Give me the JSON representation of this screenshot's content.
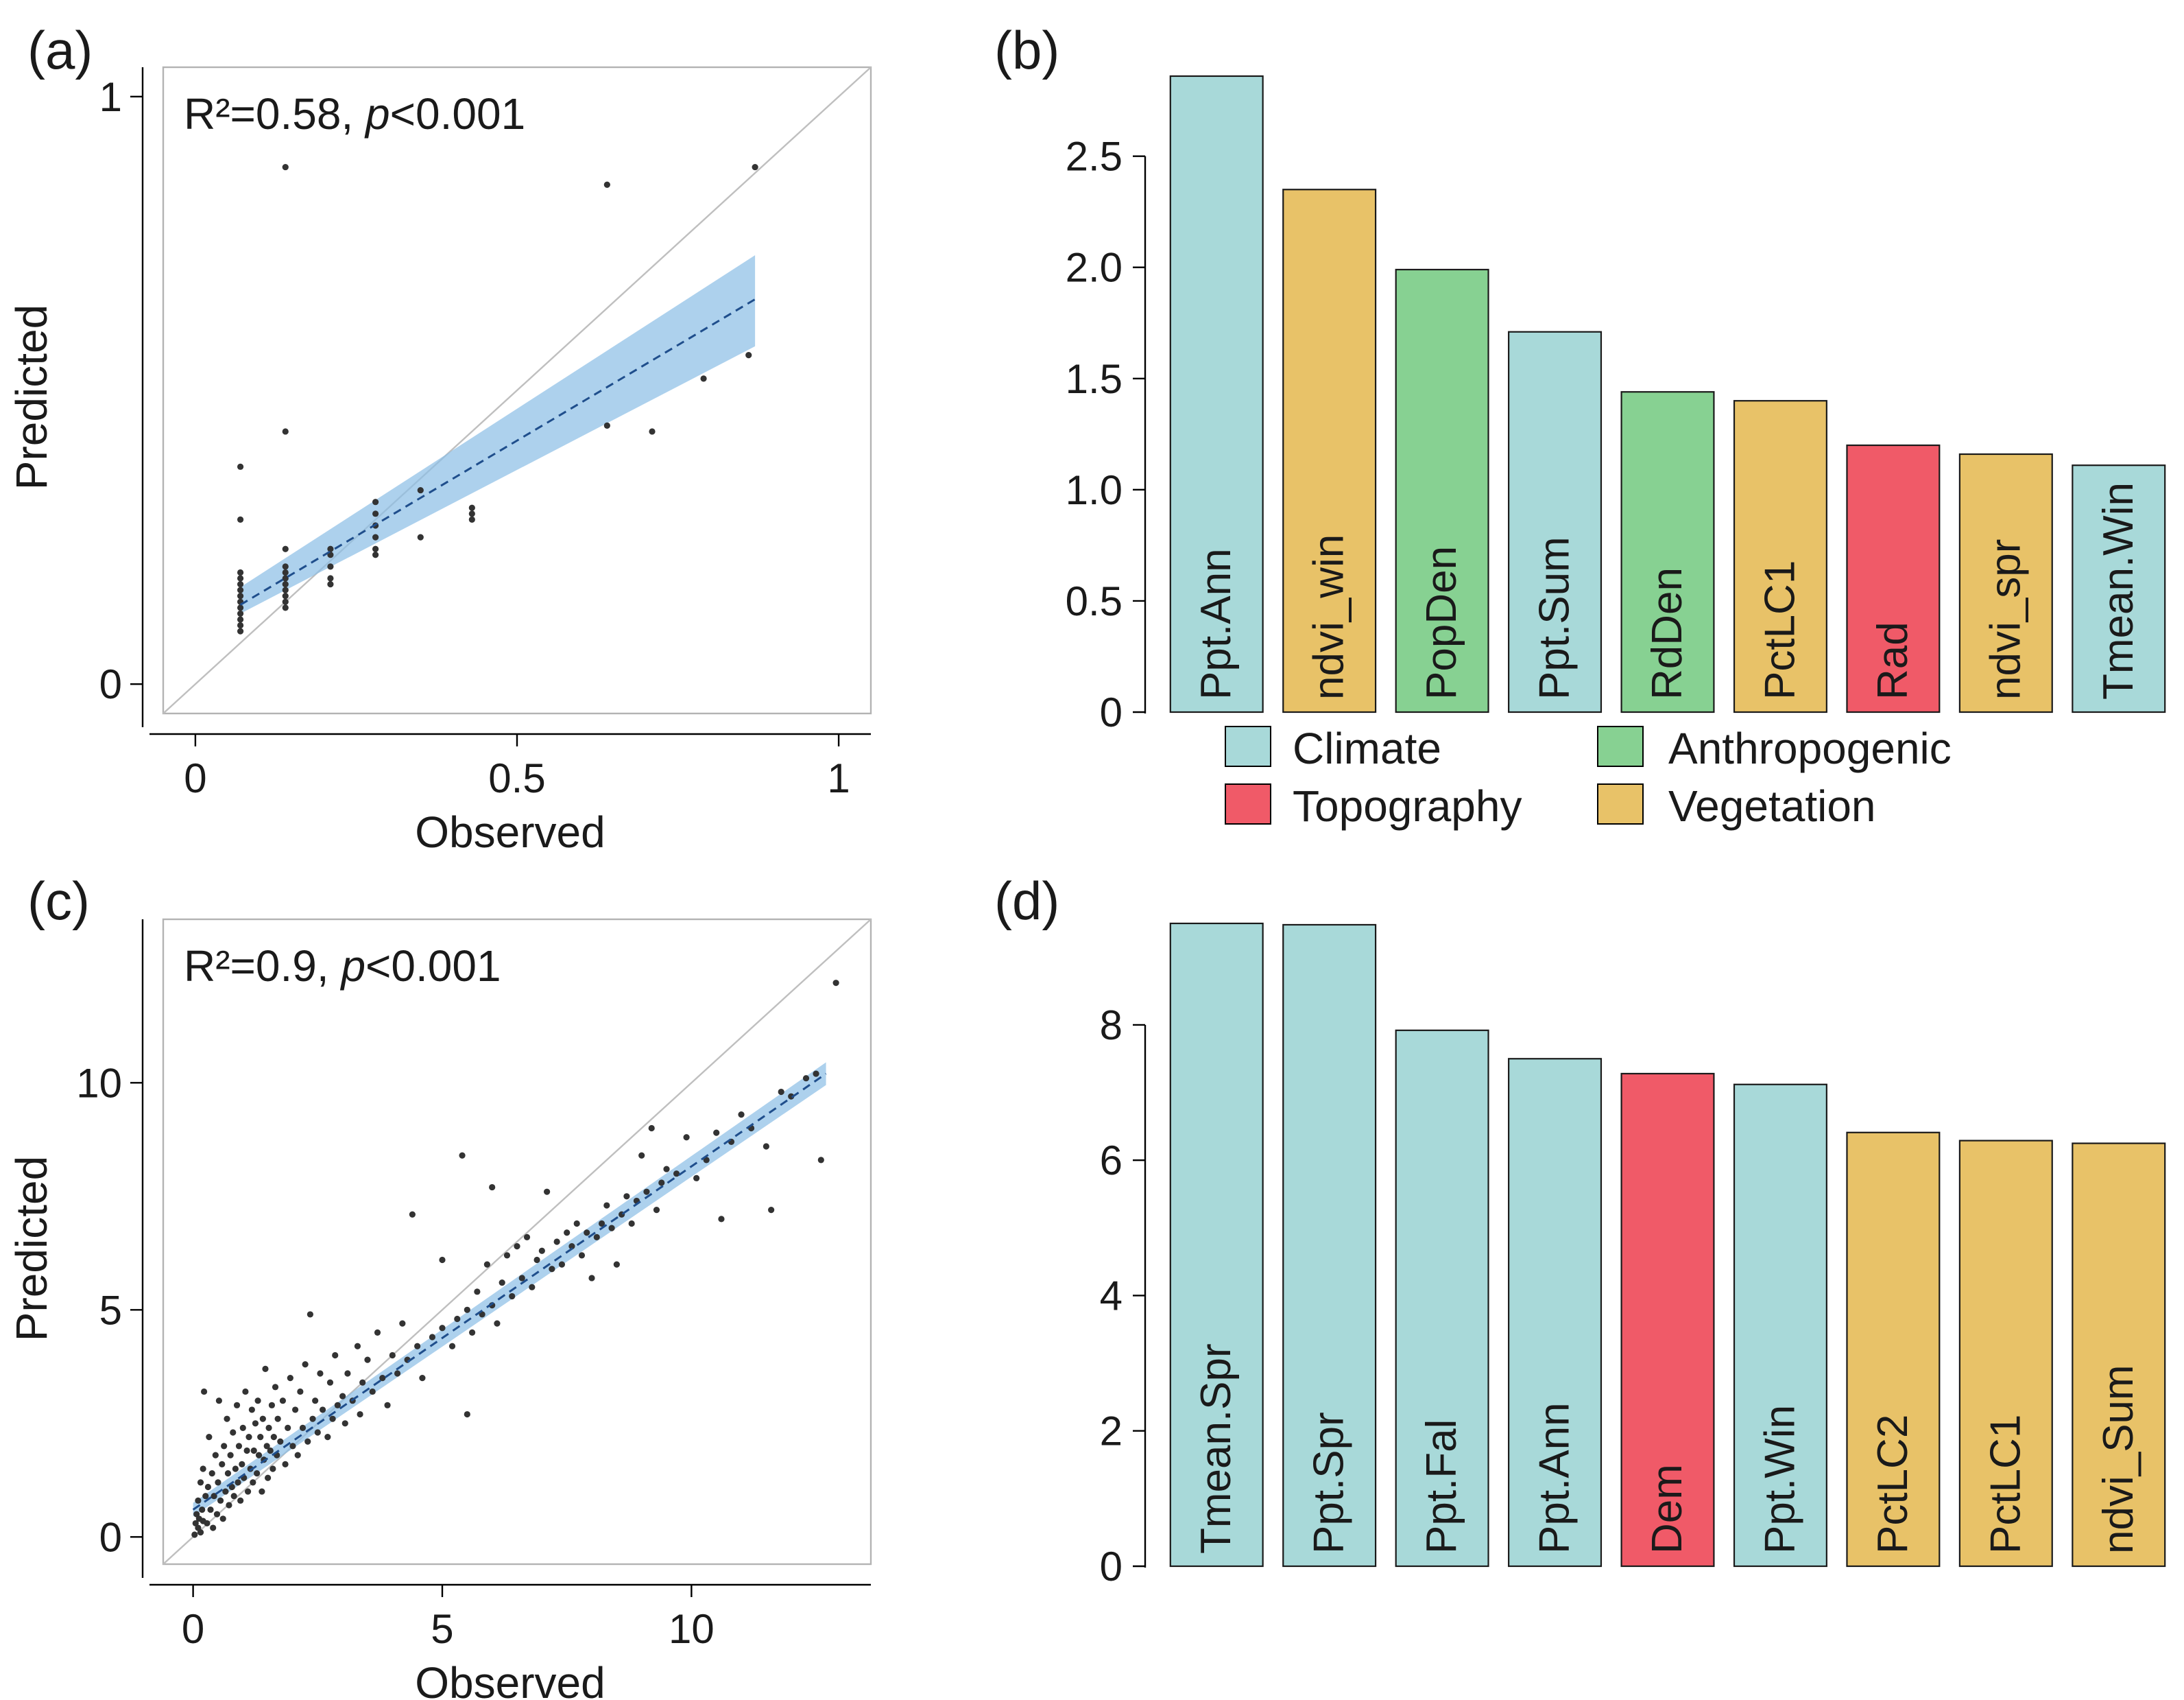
{
  "panel_labels": [
    "(a)",
    "(b)",
    "(c)",
    "(d)"
  ],
  "colors": {
    "Climate": "#a8d9d9",
    "Anthropogenic": "#87d192",
    "Topography": "#f05a68",
    "Vegetation": "#e8c268",
    "band": "#8ebfe6",
    "fit_line": "#1f4e8c",
    "points": "#333333",
    "identity_line": "#bfbfbf"
  },
  "legend": [
    {
      "label": "Climate",
      "group": "Climate"
    },
    {
      "label": "Anthropogenic",
      "group": "Anthropogenic"
    },
    {
      "label": "Topography",
      "group": "Topography"
    },
    {
      "label": "Vegetation",
      "group": "Vegetation"
    }
  ],
  "chart_data": [
    {
      "panel": "(a)",
      "type": "scatter",
      "xlabel": "Observed",
      "ylabel": "Predicted",
      "xlim": [
        -0.05,
        1.05
      ],
      "ylim": [
        -0.05,
        1.05
      ],
      "xticks": [
        0,
        0.5,
        1
      ],
      "xtick_labels": [
        "0",
        "0.5",
        "1"
      ],
      "yticks": [
        0,
        1
      ],
      "ytick_labels": [
        "0",
        "1"
      ],
      "annotation": {
        "r2": "R²=0.58,",
        "p_italic": "p",
        "p_rest": "<0.001"
      },
      "identity_line": true,
      "fit": {
        "x0": 0.07,
        "y0": 0.135,
        "x1": 0.87,
        "y1": 0.655,
        "ci_lo_start": 0.12,
        "ci_hi_start": 0.165,
        "ci_lo_end": 0.575,
        "ci_hi_end": 0.73
      },
      "points": [
        [
          0.07,
          0.09
        ],
        [
          0.07,
          0.1
        ],
        [
          0.07,
          0.11
        ],
        [
          0.07,
          0.12
        ],
        [
          0.07,
          0.13
        ],
        [
          0.07,
          0.14
        ],
        [
          0.07,
          0.15
        ],
        [
          0.07,
          0.16
        ],
        [
          0.07,
          0.17
        ],
        [
          0.07,
          0.18
        ],
        [
          0.07,
          0.19
        ],
        [
          0.07,
          0.28
        ],
        [
          0.07,
          0.37
        ],
        [
          0.14,
          0.13
        ],
        [
          0.14,
          0.14
        ],
        [
          0.14,
          0.15
        ],
        [
          0.14,
          0.16
        ],
        [
          0.14,
          0.17
        ],
        [
          0.14,
          0.18
        ],
        [
          0.14,
          0.19
        ],
        [
          0.14,
          0.2
        ],
        [
          0.14,
          0.23
        ],
        [
          0.14,
          0.43
        ],
        [
          0.14,
          0.88
        ],
        [
          0.21,
          0.17
        ],
        [
          0.21,
          0.18
        ],
        [
          0.21,
          0.2
        ],
        [
          0.21,
          0.22
        ],
        [
          0.21,
          0.23
        ],
        [
          0.28,
          0.22
        ],
        [
          0.28,
          0.23
        ],
        [
          0.28,
          0.25
        ],
        [
          0.28,
          0.27
        ],
        [
          0.28,
          0.29
        ],
        [
          0.28,
          0.31
        ],
        [
          0.35,
          0.25
        ],
        [
          0.35,
          0.33
        ],
        [
          0.43,
          0.28
        ],
        [
          0.43,
          0.29
        ],
        [
          0.43,
          0.3
        ],
        [
          0.64,
          0.44
        ],
        [
          0.64,
          0.85
        ],
        [
          0.71,
          0.43
        ],
        [
          0.79,
          0.52
        ],
        [
          0.86,
          0.56
        ],
        [
          0.87,
          0.88
        ]
      ]
    },
    {
      "panel": "(b)",
      "type": "bar",
      "categories": [
        "Ppt.Ann",
        "ndvi_win",
        "PopDen",
        "Ppt.Sum",
        "RdDen",
        "PctLC1",
        "Rad",
        "ndvi_spr",
        "Tmean.Win"
      ],
      "values": [
        2.86,
        2.35,
        1.99,
        1.71,
        1.44,
        1.4,
        1.2,
        1.16,
        1.11
      ],
      "groups": [
        "Climate",
        "Vegetation",
        "Anthropogenic",
        "Climate",
        "Anthropogenic",
        "Vegetation",
        "Topography",
        "Vegetation",
        "Climate"
      ],
      "ylim": [
        0,
        2.9
      ],
      "yticks": [
        0,
        0.5,
        1.0,
        1.5,
        2.0,
        2.5
      ],
      "ytick_labels": [
        "0",
        "0.5",
        "1.0",
        "1.5",
        "2.0",
        "2.5"
      ]
    },
    {
      "panel": "(c)",
      "type": "scatter",
      "xlabel": "Observed",
      "ylabel": "Predicted",
      "xlim": [
        -0.6,
        13.6
      ],
      "ylim": [
        -0.6,
        13.6
      ],
      "xticks": [
        0,
        5,
        10
      ],
      "xtick_labels": [
        "0",
        "5",
        "10"
      ],
      "yticks": [
        0,
        5,
        10
      ],
      "ytick_labels": [
        "0",
        "5",
        "10"
      ],
      "annotation": {
        "r2": "R²=0.9,",
        "p_italic": "p",
        "p_rest": "<0.001"
      },
      "identity_line": true,
      "fit": {
        "x0": 0.0,
        "y0": 0.6,
        "x1": 12.7,
        "y1": 10.2,
        "ci_lo_start": 0.45,
        "ci_hi_start": 0.75,
        "ci_lo_end": 9.95,
        "ci_hi_end": 10.45
      },
      "points": [
        [
          0.03,
          0.05
        ],
        [
          0.05,
          0.3
        ],
        [
          0.07,
          0.5
        ],
        [
          0.1,
          0.2
        ],
        [
          0.1,
          0.8
        ],
        [
          0.12,
          0.4
        ],
        [
          0.15,
          0.1
        ],
        [
          0.15,
          1.2
        ],
        [
          0.18,
          0.6
        ],
        [
          0.2,
          0.35
        ],
        [
          0.2,
          1.5
        ],
        [
          0.22,
          3.2
        ],
        [
          0.25,
          0.9
        ],
        [
          0.28,
          0.3
        ],
        [
          0.3,
          1.1
        ],
        [
          0.32,
          2.2
        ],
        [
          0.35,
          0.6
        ],
        [
          0.38,
          1.4
        ],
        [
          0.4,
          0.2
        ],
        [
          0.42,
          0.9
        ],
        [
          0.45,
          1.8
        ],
        [
          0.48,
          0.5
        ],
        [
          0.5,
          1.2
        ],
        [
          0.52,
          3.0
        ],
        [
          0.55,
          0.8
        ],
        [
          0.58,
          1.6
        ],
        [
          0.6,
          0.4
        ],
        [
          0.62,
          2.0
        ],
        [
          0.65,
          1.0
        ],
        [
          0.68,
          2.6
        ],
        [
          0.7,
          1.4
        ],
        [
          0.72,
          0.7
        ],
        [
          0.75,
          1.8
        ],
        [
          0.78,
          1.1
        ],
        [
          0.8,
          2.3
        ],
        [
          0.82,
          0.9
        ],
        [
          0.85,
          1.5
        ],
        [
          0.88,
          2.9
        ],
        [
          0.9,
          1.2
        ],
        [
          0.92,
          2.0
        ],
        [
          0.95,
          0.8
        ],
        [
          0.98,
          1.6
        ],
        [
          1.0,
          2.4
        ],
        [
          1.02,
          1.3
        ],
        [
          1.05,
          3.2
        ],
        [
          1.08,
          1.9
        ],
        [
          1.1,
          1.0
        ],
        [
          1.12,
          2.2
        ],
        [
          1.15,
          1.5
        ],
        [
          1.18,
          2.8
        ],
        [
          1.2,
          1.2
        ],
        [
          1.22,
          1.9
        ],
        [
          1.25,
          2.5
        ],
        [
          1.28,
          1.4
        ],
        [
          1.3,
          3.0
        ],
        [
          1.32,
          1.8
        ],
        [
          1.35,
          2.2
        ],
        [
          1.38,
          1.0
        ],
        [
          1.4,
          2.6
        ],
        [
          1.42,
          1.7
        ],
        [
          1.45,
          3.7
        ],
        [
          1.48,
          2.0
        ],
        [
          1.5,
          1.3
        ],
        [
          1.52,
          2.4
        ],
        [
          1.55,
          1.9
        ],
        [
          1.58,
          2.9
        ],
        [
          1.6,
          1.5
        ],
        [
          1.62,
          2.2
        ],
        [
          1.65,
          3.3
        ],
        [
          1.68,
          1.8
        ],
        [
          1.7,
          2.6
        ],
        [
          1.75,
          2.1
        ],
        [
          1.8,
          3.0
        ],
        [
          1.85,
          1.6
        ],
        [
          1.9,
          2.4
        ],
        [
          1.95,
          3.5
        ],
        [
          2.0,
          2.0
        ],
        [
          2.05,
          2.8
        ],
        [
          2.1,
          1.8
        ],
        [
          2.15,
          3.2
        ],
        [
          2.2,
          2.4
        ],
        [
          2.25,
          3.8
        ],
        [
          2.3,
          2.1
        ],
        [
          2.35,
          4.9
        ],
        [
          2.4,
          2.6
        ],
        [
          2.45,
          3.0
        ],
        [
          2.5,
          2.3
        ],
        [
          2.55,
          3.6
        ],
        [
          2.6,
          2.8
        ],
        [
          2.7,
          2.2
        ],
        [
          2.75,
          3.4
        ],
        [
          2.8,
          2.6
        ],
        [
          2.85,
          4.0
        ],
        [
          2.9,
          2.9
        ],
        [
          3.0,
          3.1
        ],
        [
          3.05,
          2.5
        ],
        [
          3.1,
          3.6
        ],
        [
          3.2,
          3.0
        ],
        [
          3.3,
          4.2
        ],
        [
          3.35,
          2.7
        ],
        [
          3.4,
          3.4
        ],
        [
          3.5,
          3.9
        ],
        [
          3.6,
          3.2
        ],
        [
          3.7,
          4.5
        ],
        [
          3.8,
          3.5
        ],
        [
          3.9,
          2.9
        ],
        [
          4.0,
          4.0
        ],
        [
          4.1,
          3.6
        ],
        [
          4.2,
          4.7
        ],
        [
          4.3,
          3.9
        ],
        [
          4.4,
          7.1
        ],
        [
          4.5,
          4.2
        ],
        [
          4.6,
          3.5
        ],
        [
          4.8,
          4.4
        ],
        [
          5.0,
          4.6
        ],
        [
          5.0,
          6.1
        ],
        [
          5.2,
          4.2
        ],
        [
          5.3,
          4.8
        ],
        [
          5.4,
          8.4
        ],
        [
          5.5,
          5.0
        ],
        [
          5.5,
          2.7
        ],
        [
          5.6,
          4.5
        ],
        [
          5.7,
          5.4
        ],
        [
          5.8,
          4.9
        ],
        [
          5.9,
          6.0
        ],
        [
          6.0,
          5.1
        ],
        [
          6.0,
          7.7
        ],
        [
          6.1,
          4.7
        ],
        [
          6.2,
          5.6
        ],
        [
          6.3,
          6.2
        ],
        [
          6.4,
          5.3
        ],
        [
          6.5,
          6.4
        ],
        [
          6.6,
          5.7
        ],
        [
          6.7,
          6.6
        ],
        [
          6.8,
          5.5
        ],
        [
          6.9,
          6.1
        ],
        [
          7.0,
          6.3
        ],
        [
          7.1,
          7.6
        ],
        [
          7.2,
          5.9
        ],
        [
          7.3,
          6.5
        ],
        [
          7.4,
          6.0
        ],
        [
          7.5,
          6.7
        ],
        [
          7.6,
          6.4
        ],
        [
          7.7,
          6.9
        ],
        [
          7.8,
          6.2
        ],
        [
          7.9,
          6.7
        ],
        [
          8.0,
          5.7
        ],
        [
          8.1,
          6.6
        ],
        [
          8.2,
          6.9
        ],
        [
          8.3,
          7.3
        ],
        [
          8.4,
          6.8
        ],
        [
          8.5,
          6.0
        ],
        [
          8.6,
          7.1
        ],
        [
          8.7,
          7.5
        ],
        [
          8.8,
          6.9
        ],
        [
          8.9,
          7.4
        ],
        [
          9.0,
          8.4
        ],
        [
          9.1,
          7.6
        ],
        [
          9.2,
          9.0
        ],
        [
          9.3,
          7.2
        ],
        [
          9.4,
          7.8
        ],
        [
          9.5,
          8.1
        ],
        [
          9.7,
          8.0
        ],
        [
          9.9,
          8.8
        ],
        [
          10.1,
          7.9
        ],
        [
          10.3,
          8.3
        ],
        [
          10.5,
          8.9
        ],
        [
          10.6,
          7.0
        ],
        [
          10.8,
          8.7
        ],
        [
          11.0,
          9.3
        ],
        [
          11.2,
          9.0
        ],
        [
          11.5,
          8.6
        ],
        [
          11.6,
          7.2
        ],
        [
          11.8,
          9.8
        ],
        [
          12.0,
          9.7
        ],
        [
          12.3,
          10.1
        ],
        [
          12.5,
          10.2
        ],
        [
          12.6,
          8.3
        ],
        [
          12.9,
          12.2
        ]
      ]
    },
    {
      "panel": "(d)",
      "type": "bar",
      "categories": [
        "Tmean.Spr",
        "Ppt.Spr",
        "Ppt.Fal",
        "Ppt.Ann",
        "Dem",
        "Ppt.Win",
        "PctLC2",
        "PctLC1",
        "ndvi_Sum"
      ],
      "values": [
        9.5,
        9.48,
        7.92,
        7.5,
        7.28,
        7.12,
        6.41,
        6.29,
        6.25
      ],
      "groups": [
        "Climate",
        "Climate",
        "Climate",
        "Climate",
        "Topography",
        "Climate",
        "Vegetation",
        "Vegetation",
        "Vegetation"
      ],
      "ylim": [
        0,
        9.5
      ],
      "yticks": [
        0,
        2,
        4,
        6,
        8
      ],
      "ytick_labels": [
        "0",
        "2",
        "4",
        "6",
        "8"
      ]
    }
  ]
}
